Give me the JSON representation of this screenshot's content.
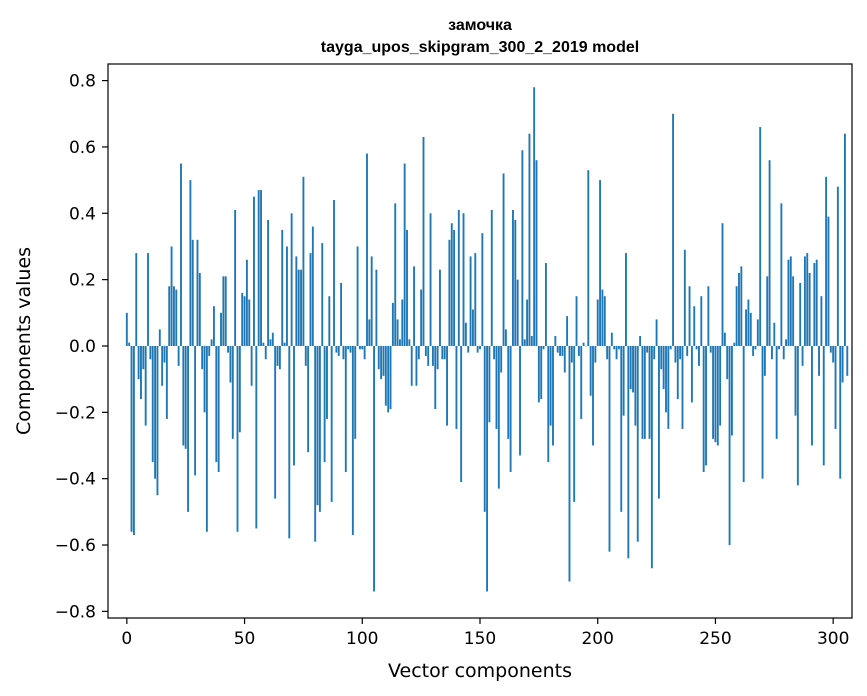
{
  "chart_data": {
    "type": "bar",
    "title": "замочка",
    "subtitle": "tayga_upos_skipgram_300_2_2019 model",
    "xlabel": "Vector components",
    "ylabel": "Components values",
    "xlim": [
      -8,
      308
    ],
    "ylim": [
      -0.82,
      0.85
    ],
    "xticks": [
      0,
      50,
      100,
      150,
      200,
      250,
      300
    ],
    "xtick_labels": [
      "0",
      "50",
      "100",
      "150",
      "200",
      "250",
      "300"
    ],
    "yticks": [
      -0.8,
      -0.6,
      -0.4,
      -0.2,
      0.0,
      0.2,
      0.4,
      0.6,
      0.8
    ],
    "ytick_labels": [
      "−0.8",
      "−0.6",
      "−0.4",
      "−0.2",
      "0.0",
      "0.2",
      "0.4",
      "0.6",
      "0.8"
    ],
    "bar_color": "#1f77b4",
    "series": [
      {
        "name": "замочка",
        "values": [
          0.1,
          0.01,
          -0.56,
          -0.57,
          0.28,
          -0.1,
          -0.16,
          -0.07,
          -0.24,
          0.28,
          -0.04,
          -0.35,
          -0.4,
          -0.45,
          0.05,
          -0.12,
          -0.05,
          -0.22,
          0.18,
          0.3,
          0.18,
          0.17,
          -0.06,
          0.55,
          -0.3,
          -0.31,
          -0.5,
          0.5,
          0.32,
          -0.39,
          0.32,
          0.22,
          -0.07,
          -0.2,
          -0.56,
          -0.03,
          0.02,
          0.12,
          -0.35,
          -0.38,
          0.1,
          0.21,
          0.21,
          -0.02,
          -0.11,
          -0.28,
          0.41,
          -0.56,
          -0.26,
          0.16,
          0.15,
          0.26,
          0.14,
          -0.12,
          0.45,
          -0.55,
          0.47,
          0.47,
          0.01,
          -0.04,
          0.38,
          0.02,
          0.04,
          -0.46,
          -0.06,
          -0.07,
          0.35,
          0.01,
          0.3,
          -0.58,
          0.4,
          -0.36,
          0.27,
          0.23,
          0.23,
          0.51,
          -0.06,
          -0.32,
          0.28,
          0.36,
          -0.59,
          -0.48,
          -0.5,
          0.31,
          -0.35,
          -0.22,
          0.15,
          -0.47,
          0.44,
          -0.02,
          -0.03,
          0.19,
          -0.04,
          -0.38,
          -0.01,
          -0.02,
          -0.57,
          -0.28,
          0.3,
          -0.01,
          -0.01,
          -0.04,
          0.58,
          0.08,
          0.27,
          -0.74,
          0.23,
          -0.07,
          -0.1,
          -0.09,
          -0.18,
          -0.2,
          -0.19,
          0.13,
          0.43,
          0.08,
          0.02,
          0.14,
          0.55,
          0.35,
          0.02,
          -0.12,
          0.24,
          -0.12,
          -0.04,
          0.17,
          0.63,
          -0.03,
          -0.06,
          0.4,
          -0.06,
          -0.19,
          -0.07,
          0.23,
          -0.04,
          -0.04,
          -0.24,
          0.32,
          0.37,
          0.35,
          -0.25,
          0.41,
          -0.41,
          0.4,
          0.07,
          -0.02,
          0.27,
          0.11,
          0.28,
          -0.02,
          -0.01,
          0.34,
          -0.5,
          -0.74,
          -0.23,
          0.41,
          -0.04,
          -0.25,
          -0.43,
          -0.08,
          0.52,
          0.05,
          -0.28,
          -0.38,
          0.41,
          0.38,
          0.2,
          -0.33,
          0.59,
          0.02,
          0.14,
          0.64,
          0.03,
          0.78,
          0.56,
          -0.17,
          -0.16,
          -0.01,
          0.25,
          -0.35,
          -0.24,
          -0.3,
          0.03,
          -0.02,
          -0.03,
          -0.03,
          -0.08,
          0.09,
          -0.71,
          -0.05,
          -0.47,
          0.15,
          -0.03,
          -0.22,
          0.01,
          0.0,
          0.53,
          -0.15,
          -0.3,
          -0.05,
          0.14,
          0.5,
          0.17,
          0.15,
          -0.04,
          -0.62,
          0.04,
          -0.01,
          -0.04,
          -0.01,
          -0.5,
          -0.21,
          0.28,
          -0.64,
          -0.13,
          -0.14,
          -0.24,
          -0.59,
          0.03,
          -0.28,
          -0.28,
          -0.02,
          -0.28,
          -0.67,
          -0.04,
          0.08,
          -0.46,
          -0.07,
          -0.13,
          -0.2,
          -0.25,
          -0.01,
          0.7,
          -0.05,
          -0.16,
          -0.04,
          -0.25,
          0.29,
          -0.03,
          0.18,
          -0.17,
          0.12,
          -0.01,
          -0.06,
          0.15,
          -0.38,
          -0.36,
          0.18,
          -0.02,
          -0.28,
          -0.29,
          -0.3,
          -0.24,
          0.37,
          0.04,
          -0.1,
          -0.6,
          -0.27,
          0.01,
          0.18,
          0.22,
          0.24,
          -0.41,
          0.11,
          0.14,
          0.1,
          -0.03,
          -0.01,
          0.08,
          0.66,
          -0.4,
          -0.09,
          0.21,
          0.56,
          -0.04,
          0.07,
          -0.28,
          -0.01,
          0.43,
          -0.04,
          0.02,
          0.26,
          0.27,
          0.21,
          -0.21,
          -0.42,
          0.19,
          -0.06,
          0.27,
          0.28,
          0.22,
          -0.3,
          0.25,
          0.26,
          -0.09,
          0.15,
          -0.36,
          0.51,
          0.39,
          -0.02,
          -0.05,
          -0.25,
          0.48,
          -0.4,
          -0.11,
          0.64,
          -0.09
        ]
      }
    ]
  }
}
